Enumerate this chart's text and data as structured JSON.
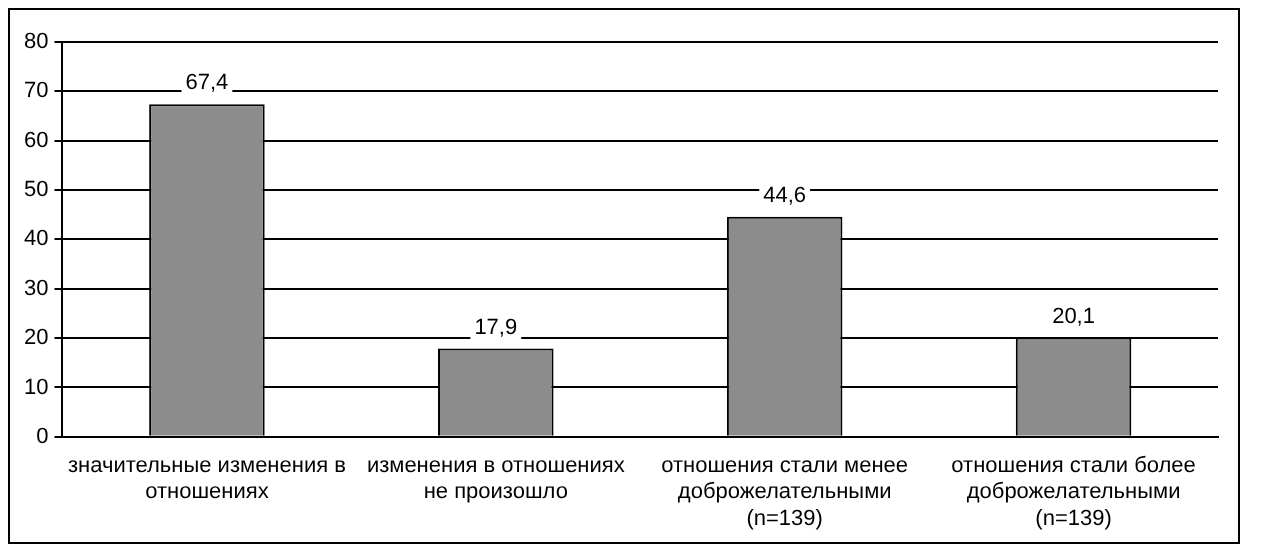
{
  "chart_data": {
    "type": "bar",
    "categories": [
      "значительные изменения в отношениях",
      "изменения в отношениях не произошло",
      "отношения стали менее доброжелательными (n=139)",
      "отношения стали более доброжелательными (n=139)"
    ],
    "values": [
      67.4,
      17.9,
      44.6,
      20.1
    ],
    "value_labels": [
      "67,4",
      "17,9",
      "44,6",
      "20,1"
    ],
    "color": "#8c8c8c",
    "ylim": [
      0,
      80
    ],
    "yticks": [
      0,
      10,
      20,
      30,
      40,
      50,
      60,
      70,
      80
    ],
    "grid": "y",
    "legend": false
  }
}
